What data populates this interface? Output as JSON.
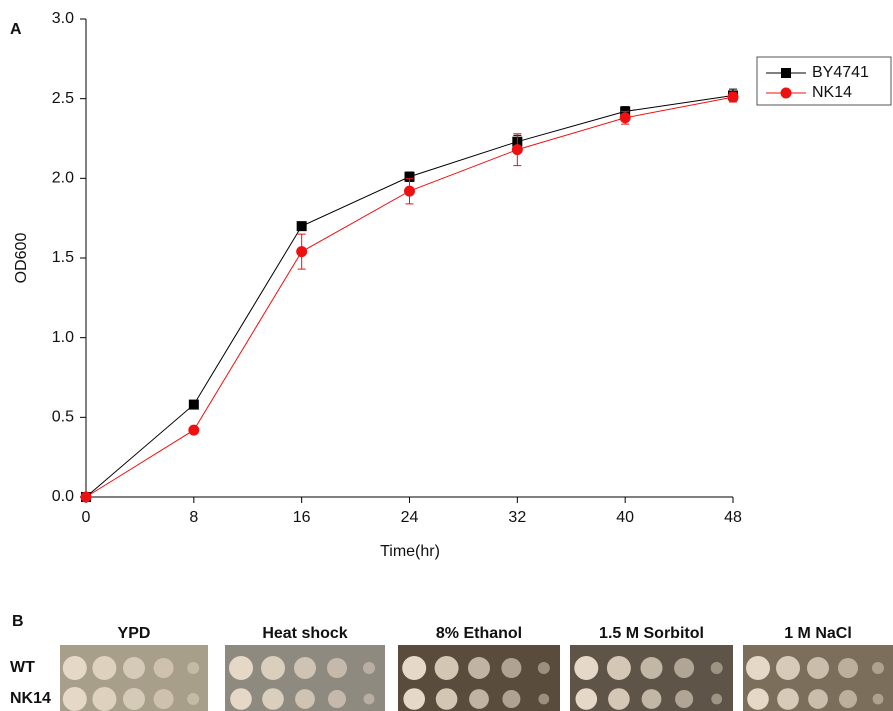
{
  "chart_data": {
    "type": "line",
    "panel_label": "A",
    "xlabel": "Time(hr)",
    "ylabel": "OD600",
    "x": [
      0,
      8,
      16,
      24,
      32,
      40,
      48
    ],
    "series": [
      {
        "name": "BY4741",
        "color": "#000000",
        "marker": "square",
        "values": [
          0,
          0.58,
          1.7,
          2.01,
          2.23,
          2.42,
          2.52
        ],
        "errors": [
          0,
          0.01,
          0.01,
          0.03,
          0.04,
          0.03,
          0.04
        ]
      },
      {
        "name": "NK14",
        "color": "#ee1111",
        "marker": "circle",
        "values": [
          0,
          0.42,
          1.54,
          1.92,
          2.18,
          2.38,
          2.51
        ],
        "errors": [
          0,
          0.01,
          0.11,
          0.08,
          0.1,
          0.04,
          0.03
        ]
      }
    ],
    "xlim": [
      0,
      48
    ],
    "xticks": [
      0,
      8,
      16,
      24,
      32,
      40,
      48
    ],
    "ylim": [
      0,
      3
    ],
    "yticks": [
      {
        "value": 0,
        "label": "0.0"
      },
      {
        "value": 0.5,
        "label": "0.5"
      },
      {
        "value": 1,
        "label": "1.0"
      },
      {
        "value": 1.5,
        "label": "1.5"
      },
      {
        "value": 2,
        "label": "2.0"
      },
      {
        "value": 2.5,
        "label": "2.5"
      },
      {
        "value": 3,
        "label": "3.0"
      }
    ],
    "grid": false,
    "legend": "upper right"
  },
  "panel_b": {
    "label": "B",
    "columns": [
      "YPD",
      "Heat shock",
      "8% Ethanol",
      "1.5 M Sorbitol",
      "1 M NaCl"
    ],
    "rows": [
      "WT",
      "NK14"
    ]
  }
}
